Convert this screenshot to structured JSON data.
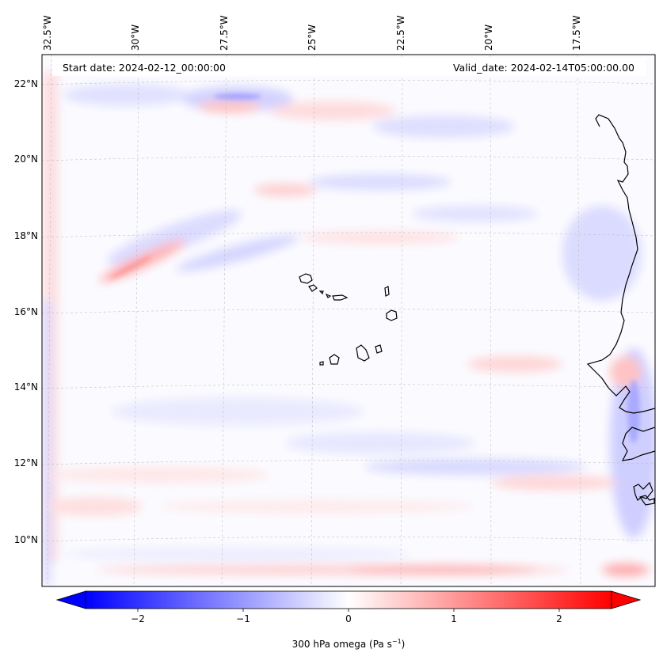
{
  "map": {
    "title_left": "Start date: 2024-02-12_00:00:00",
    "title_right": "Valid_date: 2024-02-14T05:00:00.00",
    "lon_labels": [
      "32.5°W",
      "30°W",
      "27.5°W",
      "25°W",
      "22.5°W",
      "20°W",
      "17.5°W"
    ],
    "lat_labels": [
      "22°N",
      "20°N",
      "18°N",
      "16°N",
      "14°N",
      "12°N",
      "10°N"
    ],
    "variable": "300 hPa omega",
    "units": "Pa s",
    "units_exponent": "−1"
  },
  "colorbar": {
    "ticks": [
      "−2",
      "−1",
      "0",
      "1",
      "2"
    ],
    "range": [
      -2.75,
      2.75
    ],
    "colors": {
      "low": "#0000ff",
      "mid": "#ffffff",
      "high": "#ff0000"
    },
    "extend": "both"
  }
}
